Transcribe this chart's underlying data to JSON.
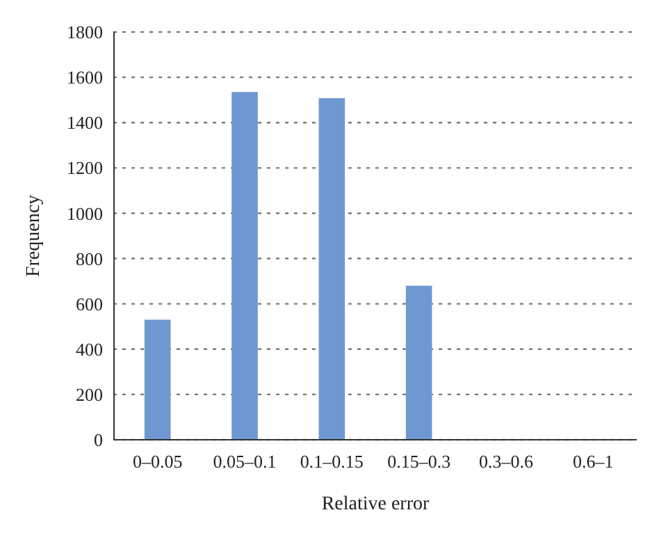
{
  "chart_data": {
    "type": "bar",
    "xlabel": "Relative error",
    "ylabel": "Frequency",
    "categories": [
      "0–0.05",
      "0.05–0.1",
      "0.1–0.15",
      "0.15–0.3",
      "0.3–0.6",
      "0.6–1"
    ],
    "values": [
      530,
      1535,
      1508,
      680,
      0,
      0
    ],
    "color": "#6f97d1",
    "ylim": [
      0,
      1800
    ],
    "yticks": [
      0,
      200,
      400,
      600,
      800,
      1000,
      1200,
      1400,
      1600,
      1800
    ],
    "grid": "y",
    "line_style": "dotted"
  }
}
